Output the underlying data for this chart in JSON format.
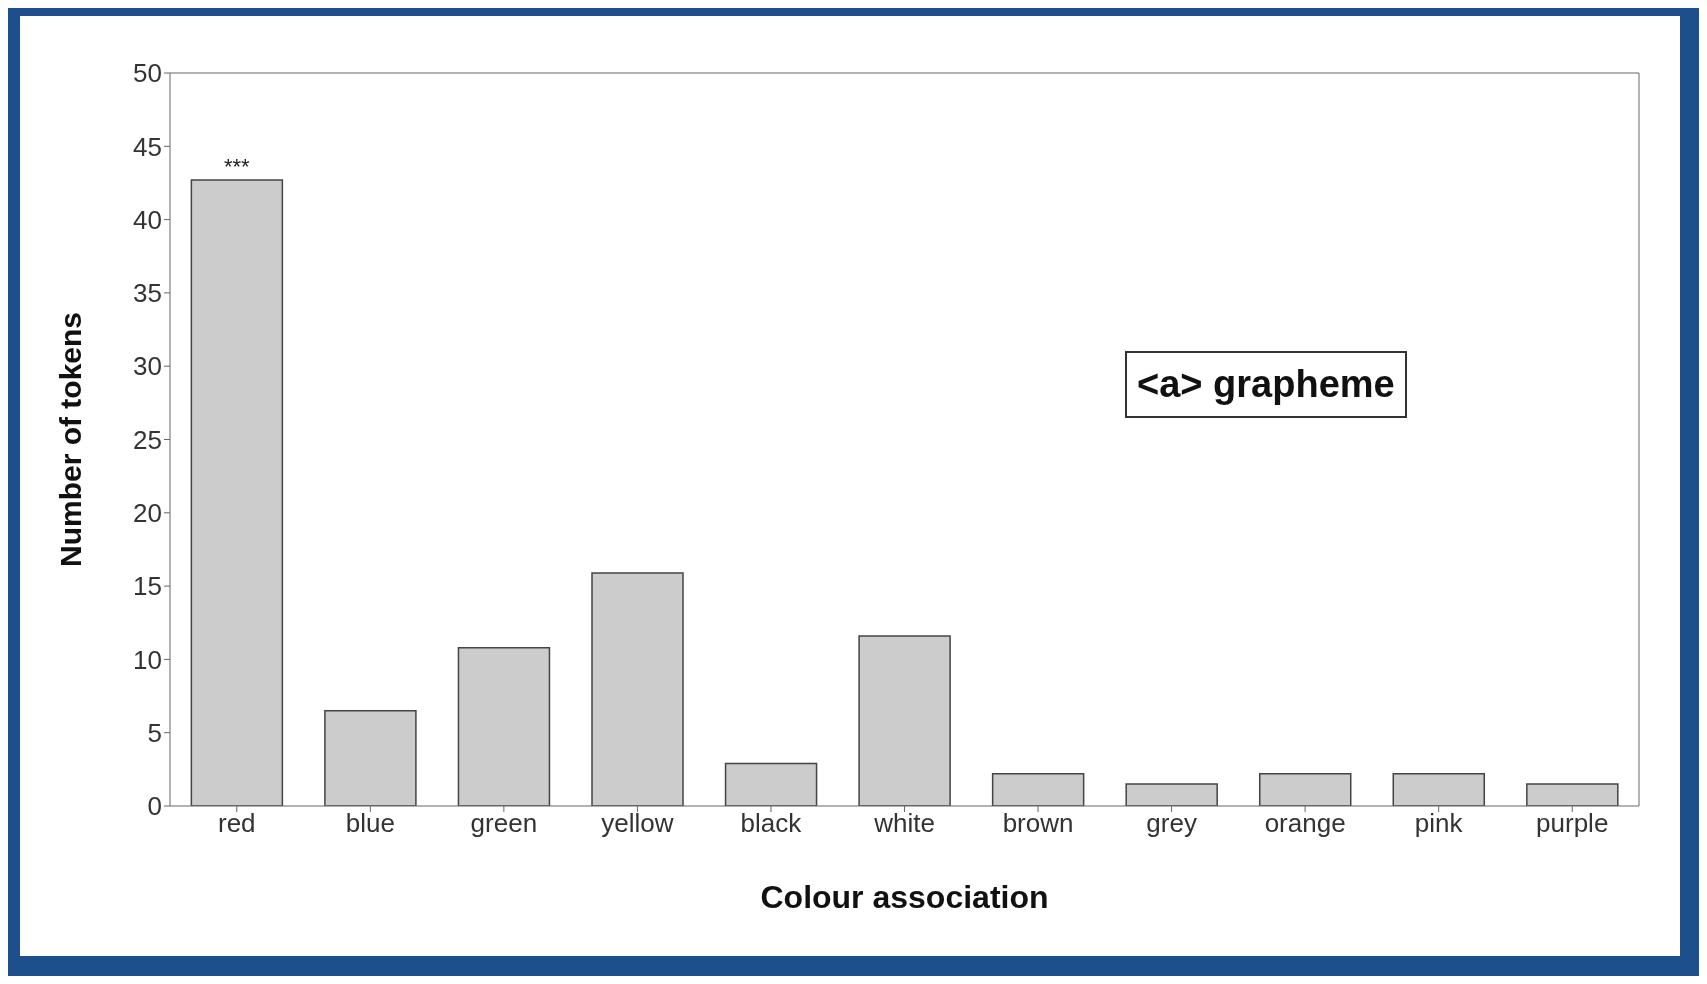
{
  "chart_data": {
    "type": "bar",
    "xlabel": "Colour association",
    "ylabel": "Number of tokens",
    "categories": [
      "red",
      "blue",
      "green",
      "yellow",
      "black",
      "white",
      "brown",
      "grey",
      "orange",
      "pink",
      "purple"
    ],
    "values": [
      42.7,
      6.5,
      10.8,
      15.9,
      2.9,
      11.6,
      2.2,
      1.5,
      2.2,
      2.2,
      1.5
    ],
    "color": "#cccccc",
    "ylim": [
      0,
      50
    ],
    "yticks": [
      0,
      5,
      10,
      15,
      20,
      25,
      30,
      35,
      40,
      45,
      50
    ],
    "grid": false,
    "annotations": [
      {
        "text": "***",
        "x": "red",
        "y": 42.7
      },
      "<a> grapheme"
    ]
  }
}
